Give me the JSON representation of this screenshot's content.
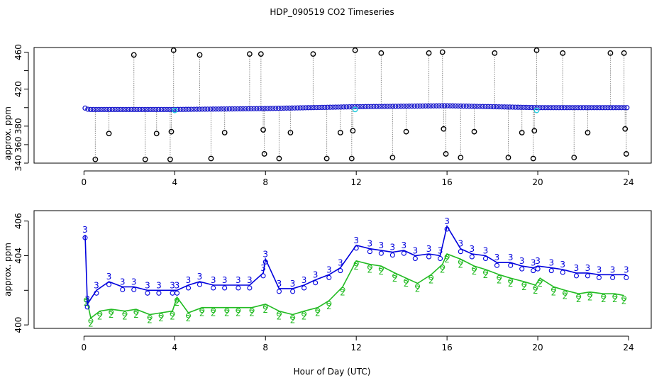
{
  "chart_data": {
    "title": "HDP_090519  CO2 Timeseries",
    "xlabel": "Hour of Day (UTC)",
    "panels": [
      {
        "id": "top",
        "type": "scatter",
        "ylabel": "approx. ppm",
        "xlim": [
          -2.2,
          25
        ],
        "ylim": [
          340,
          465
        ],
        "xticks": [
          0,
          4,
          8,
          12,
          16,
          20,
          24
        ],
        "yticks": [
          340,
          360,
          380,
          400,
          420,
          440,
          460
        ],
        "ytick_labels": [
          "340",
          "360",
          "380",
          "420",
          "460"
        ],
        "baseline": [
          [
            0,
            400
          ],
          [
            0.2,
            398
          ],
          [
            4,
            398
          ],
          [
            8,
            399
          ],
          [
            12,
            401
          ],
          [
            16,
            402
          ],
          [
            20,
            400
          ],
          [
            24,
            400
          ]
        ],
        "series": [
          {
            "color": "#000000",
            "marker": "open-circle",
            "points": [
              [
                0.5,
                344
              ],
              [
                1.1,
                372
              ],
              [
                2.2,
                457
              ],
              [
                2.7,
                344
              ],
              [
                3.2,
                372
              ],
              [
                3.8,
                344
              ],
              [
                3.85,
                374
              ],
              [
                3.95,
                462
              ],
              [
                5.1,
                457
              ],
              [
                5.6,
                345
              ],
              [
                6.2,
                373
              ],
              [
                7.3,
                458
              ],
              [
                7.8,
                458
              ],
              [
                7.9,
                376
              ],
              [
                7.95,
                350
              ],
              [
                8.6,
                345
              ],
              [
                9.1,
                373
              ],
              [
                10.1,
                458
              ],
              [
                10.7,
                345
              ],
              [
                11.3,
                373
              ],
              [
                11.8,
                345
              ],
              [
                11.85,
                375
              ],
              [
                11.95,
                462
              ],
              [
                13.1,
                459
              ],
              [
                13.6,
                346
              ],
              [
                14.2,
                374
              ],
              [
                15.2,
                459
              ],
              [
                15.8,
                460
              ],
              [
                15.85,
                377
              ],
              [
                15.95,
                350
              ],
              [
                16.6,
                346
              ],
              [
                17.2,
                374
              ],
              [
                18.1,
                459
              ],
              [
                18.7,
                346
              ],
              [
                19.3,
                373
              ],
              [
                19.8,
                345
              ],
              [
                19.85,
                375
              ],
              [
                19.95,
                462
              ],
              [
                21.1,
                459
              ],
              [
                21.6,
                346
              ],
              [
                22.2,
                373
              ],
              [
                23.2,
                459
              ],
              [
                23.8,
                459
              ],
              [
                23.85,
                377
              ],
              [
                23.9,
                350
              ]
            ]
          },
          {
            "color": "#22ccdd",
            "marker": "open-circle",
            "points": [
              [
                4.0,
                397
              ],
              [
                11.95,
                398
              ],
              [
                19.95,
                397
              ]
            ]
          }
        ]
      },
      {
        "id": "bottom",
        "type": "line",
        "ylabel": "approx. ppm",
        "xlim": [
          -2.2,
          25
        ],
        "ylim": [
          399.8,
          406.6
        ],
        "xticks": [
          0,
          4,
          8,
          12,
          16,
          20,
          24
        ],
        "yticks": [
          400,
          402,
          404,
          406
        ],
        "ytick_labels": [
          "400",
          "404",
          "406"
        ],
        "series": [
          {
            "name": "3",
            "color": "#0000dd",
            "marker": "3",
            "points": [
              [
                0.05,
                405.2
              ],
              [
                0.15,
                401.2
              ],
              [
                0.55,
                402.0
              ],
              [
                1.1,
                402.5
              ],
              [
                1.7,
                402.2
              ],
              [
                2.2,
                402.2
              ],
              [
                2.8,
                402.0
              ],
              [
                3.3,
                402.0
              ],
              [
                3.9,
                402.0
              ],
              [
                4.1,
                402.0
              ],
              [
                4.6,
                402.3
              ],
              [
                5.1,
                402.5
              ],
              [
                5.7,
                402.3
              ],
              [
                6.2,
                402.3
              ],
              [
                6.8,
                402.3
              ],
              [
                7.3,
                402.3
              ],
              [
                7.9,
                403.0
              ],
              [
                8.0,
                403.8
              ],
              [
                8.6,
                402.1
              ],
              [
                9.2,
                402.1
              ],
              [
                9.7,
                402.3
              ],
              [
                10.2,
                402.6
              ],
              [
                10.8,
                402.9
              ],
              [
                11.3,
                403.3
              ],
              [
                12.0,
                404.6
              ],
              [
                12.6,
                404.4
              ],
              [
                13.1,
                404.3
              ],
              [
                13.6,
                404.2
              ],
              [
                14.1,
                404.3
              ],
              [
                14.6,
                404.0
              ],
              [
                15.2,
                404.1
              ],
              [
                15.7,
                404.0
              ],
              [
                16.0,
                405.7
              ],
              [
                16.6,
                404.4
              ],
              [
                17.1,
                404.1
              ],
              [
                17.7,
                404.0
              ],
              [
                18.2,
                403.6
              ],
              [
                18.8,
                403.6
              ],
              [
                19.3,
                403.4
              ],
              [
                19.8,
                403.3
              ],
              [
                20.0,
                403.4
              ],
              [
                20.6,
                403.3
              ],
              [
                21.1,
                403.2
              ],
              [
                21.7,
                403.0
              ],
              [
                22.2,
                403.0
              ],
              [
                22.7,
                402.9
              ],
              [
                23.3,
                402.9
              ],
              [
                23.9,
                402.9
              ]
            ]
          },
          {
            "name": "2",
            "color": "#22bb22",
            "marker": "2",
            "points": [
              [
                0.1,
                401.6
              ],
              [
                0.3,
                400.4
              ],
              [
                0.7,
                400.8
              ],
              [
                1.2,
                400.9
              ],
              [
                1.8,
                400.8
              ],
              [
                2.3,
                400.9
              ],
              [
                2.9,
                400.6
              ],
              [
                3.4,
                400.7
              ],
              [
                3.9,
                400.8
              ],
              [
                4.1,
                401.6
              ],
              [
                4.6,
                400.7
              ],
              [
                5.2,
                401.0
              ],
              [
                5.7,
                401.0
              ],
              [
                6.3,
                401.0
              ],
              [
                6.8,
                401.0
              ],
              [
                7.4,
                401.0
              ],
              [
                8.0,
                401.2
              ],
              [
                8.6,
                400.8
              ],
              [
                9.2,
                400.6
              ],
              [
                9.7,
                400.8
              ],
              [
                10.3,
                401.0
              ],
              [
                10.8,
                401.4
              ],
              [
                11.4,
                402.2
              ],
              [
                12.0,
                403.7
              ],
              [
                12.6,
                403.5
              ],
              [
                13.1,
                403.4
              ],
              [
                13.7,
                403.0
              ],
              [
                14.2,
                402.7
              ],
              [
                14.7,
                402.4
              ],
              [
                15.3,
                402.9
              ],
              [
                15.8,
                403.5
              ],
              [
                16.0,
                404.1
              ],
              [
                16.6,
                403.8
              ],
              [
                17.2,
                403.4
              ],
              [
                17.7,
                403.2
              ],
              [
                18.3,
                402.9
              ],
              [
                18.8,
                402.7
              ],
              [
                19.4,
                402.5
              ],
              [
                19.9,
                402.3
              ],
              [
                20.1,
                402.7
              ],
              [
                20.7,
                402.2
              ],
              [
                21.2,
                402.0
              ],
              [
                21.8,
                401.8
              ],
              [
                22.3,
                401.9
              ],
              [
                22.9,
                401.8
              ],
              [
                23.4,
                401.8
              ],
              [
                23.8,
                401.7
              ]
            ]
          }
        ]
      }
    ]
  }
}
